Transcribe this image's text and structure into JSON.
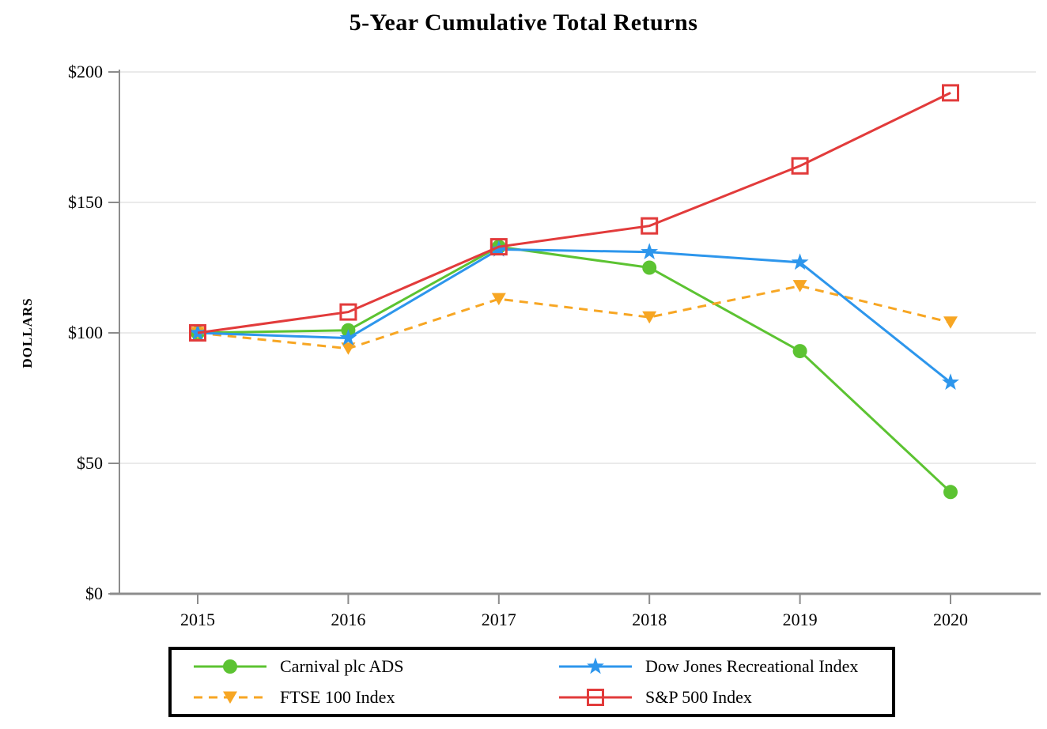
{
  "title": "5-Year Cumulative Total Returns",
  "chart_data": {
    "type": "line",
    "x": [
      2015,
      2016,
      2017,
      2018,
      2019,
      2020
    ],
    "x_tick_labels": [
      "2015",
      "2016",
      "2017",
      "2018",
      "2019",
      "2020"
    ],
    "ylabel": "DOLLARS",
    "ylim": [
      0,
      200
    ],
    "y_ticks": [
      0,
      50,
      100,
      150,
      200
    ],
    "y_tick_labels": [
      "$0",
      "$50",
      "$100",
      "$150",
      "$200"
    ],
    "grid": "horizontal-gridlines-on",
    "legend_position": "bottom-boxed",
    "series": [
      {
        "name": "Carnival plc ADS",
        "values": [
          100,
          101,
          133,
          125,
          93,
          39
        ],
        "color": "#5CC332",
        "marker": "circle",
        "line_style": "solid"
      },
      {
        "name": "FTSE 100 Index",
        "values": [
          100,
          94,
          113,
          106,
          118,
          104
        ],
        "color": "#F7A623",
        "marker": "triangle-down",
        "line_style": "dashed"
      },
      {
        "name": "Dow Jones Recreational Index",
        "values": [
          100,
          98,
          132,
          131,
          127,
          81
        ],
        "color": "#2D96EC",
        "marker": "star",
        "line_style": "solid"
      },
      {
        "name": "S&P 500 Index",
        "values": [
          100,
          108,
          133,
          141,
          164,
          192
        ],
        "color": "#E23B3B",
        "marker": "square-open",
        "line_style": "solid"
      }
    ],
    "axis_color": "#8C8C8C",
    "gridline_color": "#EAEAEA",
    "text_color": "#000000"
  }
}
